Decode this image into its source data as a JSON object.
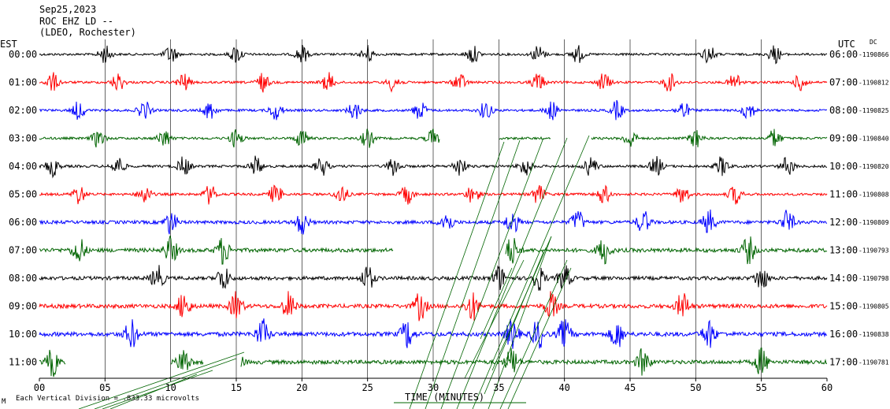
{
  "header": {
    "date": "Sep25,2023",
    "station": "ROC EHZ LD --",
    "network": "(LDEO, Rochester)"
  },
  "labels": {
    "left_tz": "EST",
    "right_tz": "UTC",
    "dc": "DC",
    "footer_scale": "Each Vertical Division = .833.33 microvolts",
    "footer_mark": "M"
  },
  "colors": {
    "cycle": [
      "#000000",
      "#ff0000",
      "#0000ff",
      "#006400"
    ],
    "grid": "#000000"
  },
  "chart_data": {
    "type": "line",
    "title": "",
    "xlabel": "TIME (MINUTES)",
    "xlim": [
      0,
      60
    ],
    "x_ticks": [
      "00",
      "05",
      "10",
      "15",
      "20",
      "25",
      "30",
      "35",
      "40",
      "45",
      "50",
      "55",
      "60"
    ],
    "rows": [
      {
        "est": "00:00",
        "utc": "06:00",
        "dc": "-1190866",
        "color": "#000000",
        "amp": 0.35,
        "bursts": [
          5,
          10,
          15,
          20,
          25,
          33,
          38,
          41,
          51,
          56
        ]
      },
      {
        "est": "01:00",
        "utc": "07:00",
        "dc": "-1190812",
        "color": "#ff0000",
        "amp": 0.4,
        "bursts": [
          1,
          6,
          11,
          17,
          22,
          27,
          32,
          38,
          43,
          48,
          53,
          58
        ]
      },
      {
        "est": "02:00",
        "utc": "08:00",
        "dc": "-1190825",
        "color": "#0000ff",
        "amp": 0.4,
        "bursts": [
          3,
          8,
          13,
          18,
          24,
          29,
          34,
          39,
          44,
          49,
          54
        ]
      },
      {
        "est": "03:00",
        "utc": "09:00",
        "dc": "-1190840",
        "color": "#006400",
        "amp": 0.4,
        "bursts": [
          4.5,
          9.5,
          15,
          20,
          25,
          30,
          45,
          50,
          56
        ],
        "gaps": [
          [
            30.5,
            35
          ],
          [
            39,
            42
          ]
        ]
      },
      {
        "est": "04:00",
        "utc": "10:00",
        "dc": "-1190820",
        "color": "#000000",
        "amp": 0.45,
        "bursts": [
          1,
          6,
          11,
          16.5,
          21.5,
          27,
          32,
          37,
          42,
          47,
          52,
          57
        ]
      },
      {
        "est": "05:00",
        "utc": "11:00",
        "dc": "-1190808",
        "color": "#ff0000",
        "amp": 0.45,
        "bursts": [
          3,
          8,
          13,
          18,
          23,
          28,
          33,
          38,
          43,
          49,
          53
        ]
      },
      {
        "est": "06:00",
        "utc": "12:00",
        "dc": "-1190809",
        "color": "#0000ff",
        "amp": 0.75,
        "bursts": [
          10,
          20,
          31,
          36,
          41,
          46,
          51,
          57
        ]
      },
      {
        "est": "07:00",
        "utc": "13:00",
        "dc": "-1190793",
        "color": "#006400",
        "amp": 1.0,
        "bursts": [
          3,
          10,
          14,
          36,
          43,
          54
        ],
        "gaps": [
          [
            27,
            35.5
          ]
        ]
      },
      {
        "est": "08:00",
        "utc": "14:00",
        "dc": "-1190798",
        "color": "#000000",
        "amp": 0.85,
        "bursts": [
          9,
          14,
          25,
          35,
          38,
          40,
          55
        ]
      },
      {
        "est": "09:00",
        "utc": "15:00",
        "dc": "-1190805",
        "color": "#ff0000",
        "amp": 1.0,
        "bursts": [
          11,
          15,
          19,
          29,
          33,
          39,
          49
        ]
      },
      {
        "est": "10:00",
        "utc": "16:00",
        "dc": "-1190838",
        "color": "#0000ff",
        "amp": 1.1,
        "bursts": [
          7,
          17,
          28,
          36,
          38,
          40,
          44,
          51
        ]
      },
      {
        "est": "11:00",
        "utc": "17:00",
        "dc": "-1190781",
        "color": "#006400",
        "amp": 1.0,
        "bursts": [
          1,
          11,
          15,
          36,
          46,
          55
        ],
        "gaps": [
          [
            2,
            10
          ],
          [
            12.5,
            15.3
          ]
        ]
      }
    ]
  }
}
